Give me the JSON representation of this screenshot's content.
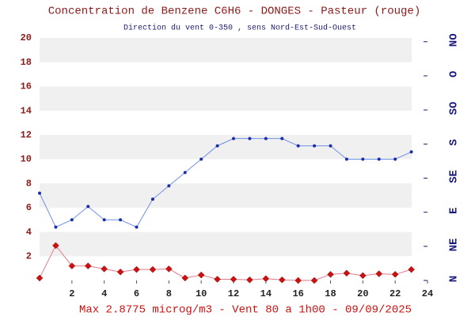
{
  "chart_data": {
    "type": "line",
    "title": "Concentration de Benzene C6H6  -   DONGES - Pasteur (rouge)",
    "subtitle": "Direction du vent 0-350 , sens Nord-Est-Sud-Ouest",
    "footer": "Max 2.8775 microg/m3 - Vent 80  a 1h00 - 09/09/2025",
    "x": [
      0,
      1,
      2,
      3,
      4,
      5,
      6,
      7,
      8,
      9,
      10,
      11,
      12,
      13,
      14,
      15,
      16,
      17,
      18,
      19,
      20,
      21,
      22,
      23
    ],
    "xlim": [
      0,
      24
    ],
    "xticks": [
      2,
      4,
      6,
      8,
      10,
      12,
      14,
      16,
      18,
      20,
      22,
      24
    ],
    "ylim": [
      0,
      20
    ],
    "yticks": [
      2,
      4,
      6,
      8,
      10,
      12,
      14,
      16,
      18,
      20
    ],
    "y2lim": [
      0,
      320
    ],
    "y2ticks": [
      {
        "value": 0,
        "label": "N"
      },
      {
        "value": 45,
        "label": "NE"
      },
      {
        "value": 90,
        "label": "E"
      },
      {
        "value": 135,
        "label": "SE"
      },
      {
        "value": 180,
        "label": "S"
      },
      {
        "value": 225,
        "label": "SO"
      },
      {
        "value": 270,
        "label": "O"
      },
      {
        "value": 315,
        "label": "NO"
      }
    ],
    "grid": true,
    "series": [
      {
        "color": "#6d8fe6",
        "marker_color": "#1a2ea8",
        "marker": "dot",
        "values": [
          7.2,
          4.4,
          5.0,
          6.1,
          5.0,
          5.0,
          4.4,
          6.7,
          7.8,
          8.9,
          10.0,
          11.1,
          11.7,
          11.7,
          11.7,
          11.7,
          11.1,
          11.1,
          11.1,
          10.0,
          10.0,
          10.0,
          10.0,
          10.6
        ]
      },
      {
        "color": "#e07a8a",
        "marker_color": "#cc1111",
        "marker": "diamond",
        "values": [
          0.2,
          2.8775,
          1.2,
          1.2,
          0.95,
          0.7,
          0.9,
          0.9,
          0.95,
          0.2,
          0.45,
          0.1,
          0.1,
          0.05,
          0.15,
          0.05,
          0.0,
          0.0,
          0.5,
          0.6,
          0.4,
          0.55,
          0.5,
          0.9
        ]
      }
    ]
  }
}
